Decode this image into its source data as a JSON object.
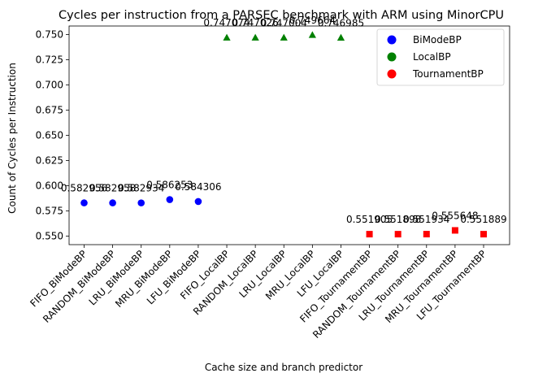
{
  "chart_data": {
    "type": "scatter",
    "title": "Cycles per instruction from a PARSEC benchmark with ARM using MinorCPU",
    "xlabel": "Cache size and branch predictor",
    "ylabel": "Count of Cycles per Instruction",
    "ylim": [
      0.5415,
      0.7585
    ],
    "yticks": [
      0.55,
      0.575,
      0.6,
      0.625,
      0.65,
      0.675,
      0.7,
      0.725,
      0.75
    ],
    "ytick_labels": [
      "0.550",
      "0.575",
      "0.600",
      "0.625",
      "0.650",
      "0.675",
      "0.700",
      "0.725",
      "0.750"
    ],
    "categories": [
      "FIFO_BiModeBP",
      "RANDOM_BiModeBP",
      "LRU_BiModeBP",
      "MRU_BiModeBP",
      "LFU_BiModeBP",
      "FIFO_LocalBP",
      "RANDOM_LocalBP",
      "LRU_LocalBP",
      "MRU_LocalBP",
      "LFU_LocalBP",
      "FIFO_TournamentBP",
      "RANDOM_TournamentBP",
      "LRU_TournamentBP",
      "MRU_TournamentBP",
      "LFU_TournamentBP"
    ],
    "series": [
      {
        "name": "BiModeBP",
        "color": "#0000ff",
        "marker": "circle",
        "indices": [
          0,
          1,
          2,
          3,
          4
        ],
        "values": [
          0.582956,
          0.582958,
          0.582934,
          0.586253,
          0.584306
        ],
        "labels": [
          "0.582956",
          "0.582958",
          "0.582934",
          "0.586253",
          "0.584306"
        ]
      },
      {
        "name": "LocalBP",
        "color": "#008000",
        "marker": "triangle",
        "indices": [
          5,
          6,
          7,
          8,
          9
        ],
        "values": [
          0.747074,
          0.747026,
          0.747004,
          0.749664,
          0.746985
        ],
        "labels": [
          "0.747074",
          "0.747026",
          "0.747004",
          "0.749664",
          "0.746985"
        ]
      },
      {
        "name": "TournamentBP",
        "color": "#ff0000",
        "marker": "square",
        "indices": [
          10,
          11,
          12,
          13,
          14
        ],
        "values": [
          0.551905,
          0.551898,
          0.551934,
          0.555648,
          0.551889
        ],
        "labels": [
          "0.551905",
          "0.551898",
          "0.551934",
          "0.555648",
          "0.551889"
        ]
      }
    ],
    "legend": {
      "placement": "top-right",
      "entries": [
        "BiModeBP",
        "LocalBP",
        "TournamentBP"
      ]
    },
    "grid": false
  }
}
